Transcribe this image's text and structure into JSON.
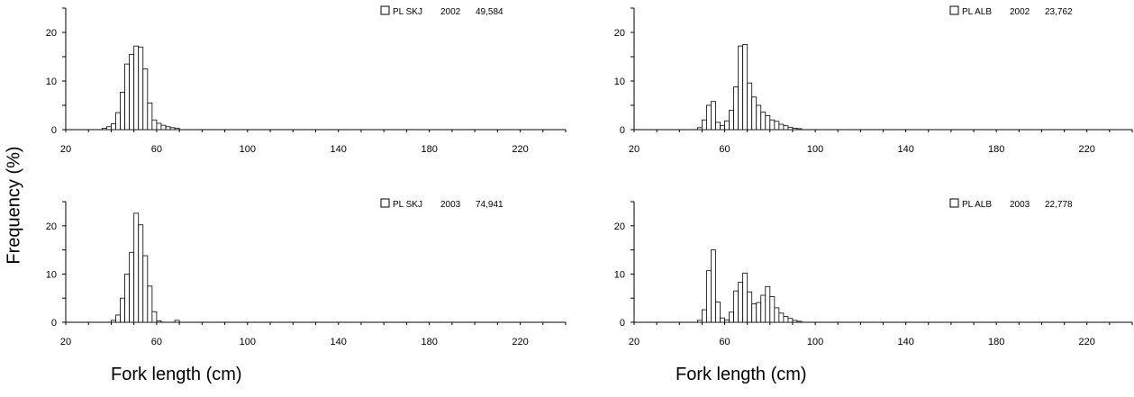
{
  "figure": {
    "ylabel": "Frequency (%)",
    "xlabel_left": "Fork length (cm)",
    "xlabel_right": "Fork length (cm)"
  },
  "chart_data": [
    {
      "type": "bar",
      "legend": "PL SKJ",
      "year": "2002",
      "n": "49,584",
      "legend_placement": "top-right",
      "xlim": [
        20,
        240
      ],
      "ylim": [
        0,
        25
      ],
      "xticks": [
        20,
        60,
        100,
        140,
        180,
        220
      ],
      "yticks": [
        0,
        10,
        20
      ],
      "bin_width": 2,
      "bins": [
        36,
        38,
        40,
        42,
        44,
        46,
        48,
        50,
        52,
        54,
        56,
        58,
        60,
        62,
        64,
        66,
        68
      ],
      "values": [
        0.3,
        0.6,
        1.2,
        3.5,
        7.7,
        13.5,
        15.5,
        17.2,
        17.0,
        12.5,
        5.5,
        2.0,
        1.3,
        0.9,
        0.6,
        0.4,
        0.3
      ]
    },
    {
      "type": "bar",
      "legend": "PL ALB",
      "year": "2002",
      "n": "23,762",
      "legend_placement": "top-right",
      "xlim": [
        20,
        240
      ],
      "ylim": [
        0,
        25
      ],
      "xticks": [
        20,
        60,
        100,
        140,
        180,
        220
      ],
      "yticks": [
        0,
        10,
        20
      ],
      "bin_width": 2,
      "bins": [
        48,
        50,
        52,
        54,
        56,
        58,
        60,
        62,
        64,
        66,
        68,
        70,
        72,
        74,
        76,
        78,
        80,
        82,
        84,
        86,
        88,
        90,
        92
      ],
      "values": [
        0.4,
        2.0,
        5.0,
        5.8,
        1.5,
        0.8,
        1.8,
        4.0,
        8.8,
        17.2,
        17.5,
        9.6,
        6.7,
        5.0,
        3.6,
        2.9,
        2.0,
        1.7,
        1.1,
        0.8,
        0.5,
        0.3,
        0.2
      ]
    },
    {
      "type": "bar",
      "legend": "PL SKJ",
      "year": "2003",
      "n": "74,941",
      "legend_placement": "top-right",
      "xlim": [
        20,
        240
      ],
      "ylim": [
        0,
        25
      ],
      "xticks": [
        20,
        60,
        100,
        140,
        180,
        220
      ],
      "yticks": [
        0,
        10,
        20
      ],
      "bin_width": 2,
      "bins": [
        40,
        42,
        44,
        46,
        48,
        50,
        52,
        54,
        56,
        58,
        60,
        68
      ],
      "values": [
        0.4,
        1.5,
        5.0,
        10.0,
        14.5,
        22.6,
        20.2,
        13.8,
        7.5,
        2.2,
        0.3,
        0.4
      ]
    },
    {
      "type": "bar",
      "legend": "PL ALB",
      "year": "2003",
      "n": "22,778",
      "legend_placement": "top-right",
      "xlim": [
        20,
        240
      ],
      "ylim": [
        0,
        25
      ],
      "xticks": [
        20,
        60,
        100,
        140,
        180,
        220
      ],
      "yticks": [
        0,
        10,
        20
      ],
      "bin_width": 2,
      "bins": [
        48,
        50,
        52,
        54,
        56,
        58,
        60,
        62,
        64,
        66,
        68,
        70,
        72,
        74,
        76,
        78,
        80,
        82,
        84,
        86,
        88,
        90,
        92
      ],
      "values": [
        0.4,
        2.6,
        10.7,
        15.0,
        4.2,
        0.9,
        0.5,
        2.1,
        6.5,
        8.3,
        10.2,
        6.3,
        3.8,
        4.1,
        5.6,
        7.4,
        5.3,
        3.0,
        1.9,
        1.2,
        0.8,
        0.4,
        0.2
      ]
    }
  ]
}
